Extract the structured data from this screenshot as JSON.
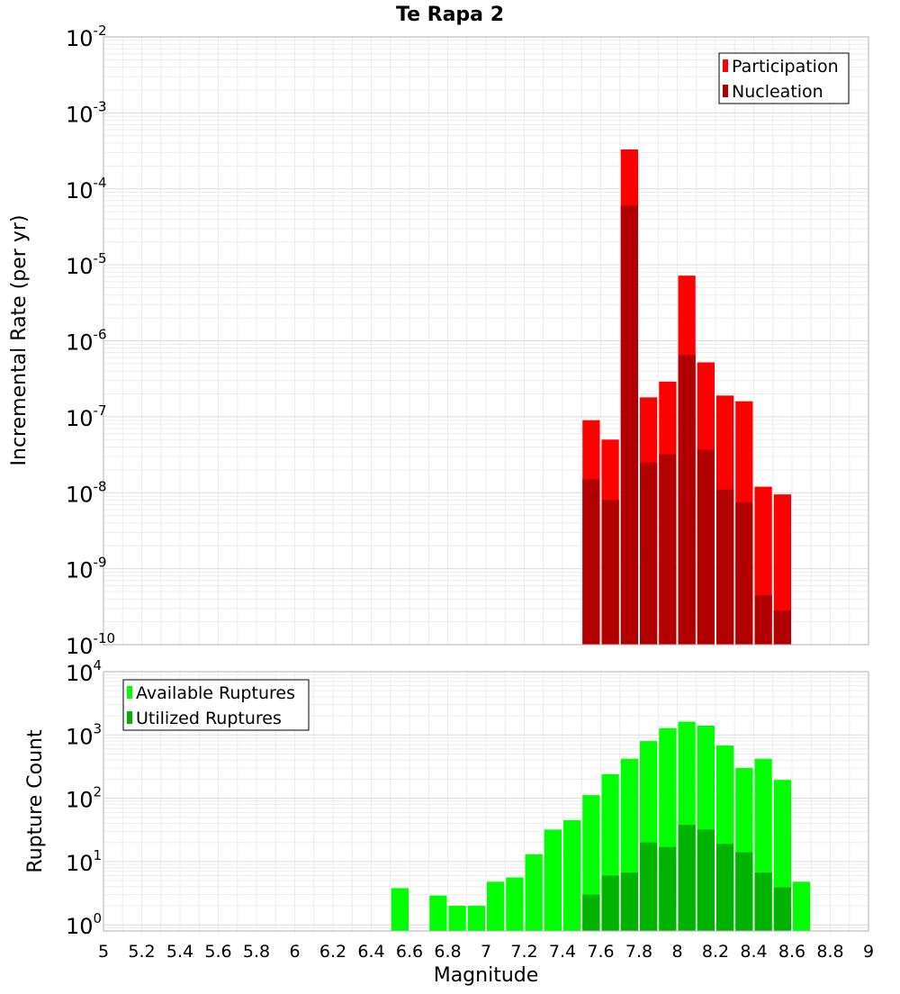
{
  "title": "Te Rapa 2",
  "xlabel": "Magnitude",
  "x_ticks": [
    5,
    5.2,
    5.4,
    5.6,
    5.8,
    6,
    6.2,
    6.4,
    6.6,
    6.8,
    7,
    7.2,
    7.4,
    7.6,
    7.8,
    8,
    8.2,
    8.4,
    8.6,
    8.8,
    9
  ],
  "chart_data": [
    {
      "type": "bar",
      "ylabel": "Incremental Rate (per yr)",
      "y_scale": "log",
      "ylim": [
        1e-10,
        0.01
      ],
      "xlim": [
        5,
        9
      ],
      "bin_width": 0.1,
      "grid": true,
      "legend_placement": "top-right",
      "x": [
        7.55,
        7.65,
        7.75,
        7.85,
        7.95,
        8.05,
        8.15,
        8.25,
        8.35,
        8.45,
        8.55
      ],
      "series": [
        {
          "name": "Participation",
          "color": "#ff0000",
          "values": [
            9e-08,
            5e-08,
            0.00033,
            1.8e-07,
            2.9e-07,
            7.2e-06,
            5.2e-07,
            1.9e-07,
            1.6e-07,
            1.2e-08,
            9.5e-09
          ]
        },
        {
          "name": "Nucleation",
          "color": "#b20000",
          "values": [
            1.5e-08,
            8e-09,
            6e-05,
            2.5e-08,
            3.2e-08,
            6.5e-07,
            3.7e-08,
            1.1e-08,
            7.5e-09,
            4.5e-10,
            2.8e-10
          ]
        }
      ]
    },
    {
      "type": "bar",
      "ylabel": "Rupture Count",
      "y_scale": "log",
      "ylim": [
        0.8,
        10000
      ],
      "xlim": [
        5,
        9
      ],
      "bin_width": 0.1,
      "grid": true,
      "legend_placement": "top-left",
      "x": [
        6.55,
        6.75,
        6.85,
        6.95,
        7.05,
        7.15,
        7.25,
        7.35,
        7.45,
        7.55,
        7.65,
        7.75,
        7.85,
        7.95,
        8.05,
        8.15,
        8.25,
        8.35,
        8.45,
        8.55,
        8.65
      ],
      "series": [
        {
          "name": "Available Ruptures",
          "color": "#00ff00",
          "values": [
            3.8,
            2.9,
            2.0,
            2.0,
            4.8,
            5.6,
            13,
            32,
            45,
            112,
            240,
            420,
            800,
            1280,
            1620,
            1400,
            680,
            300,
            420,
            195,
            4.8
          ]
        },
        {
          "name": "Utilized Ruptures",
          "color": "#00b300",
          "values": [
            null,
            null,
            null,
            null,
            null,
            null,
            null,
            null,
            null,
            3.0,
            6.0,
            6.7,
            20,
            17,
            38,
            32,
            19,
            14,
            6.7,
            3.9,
            null
          ]
        }
      ]
    }
  ]
}
